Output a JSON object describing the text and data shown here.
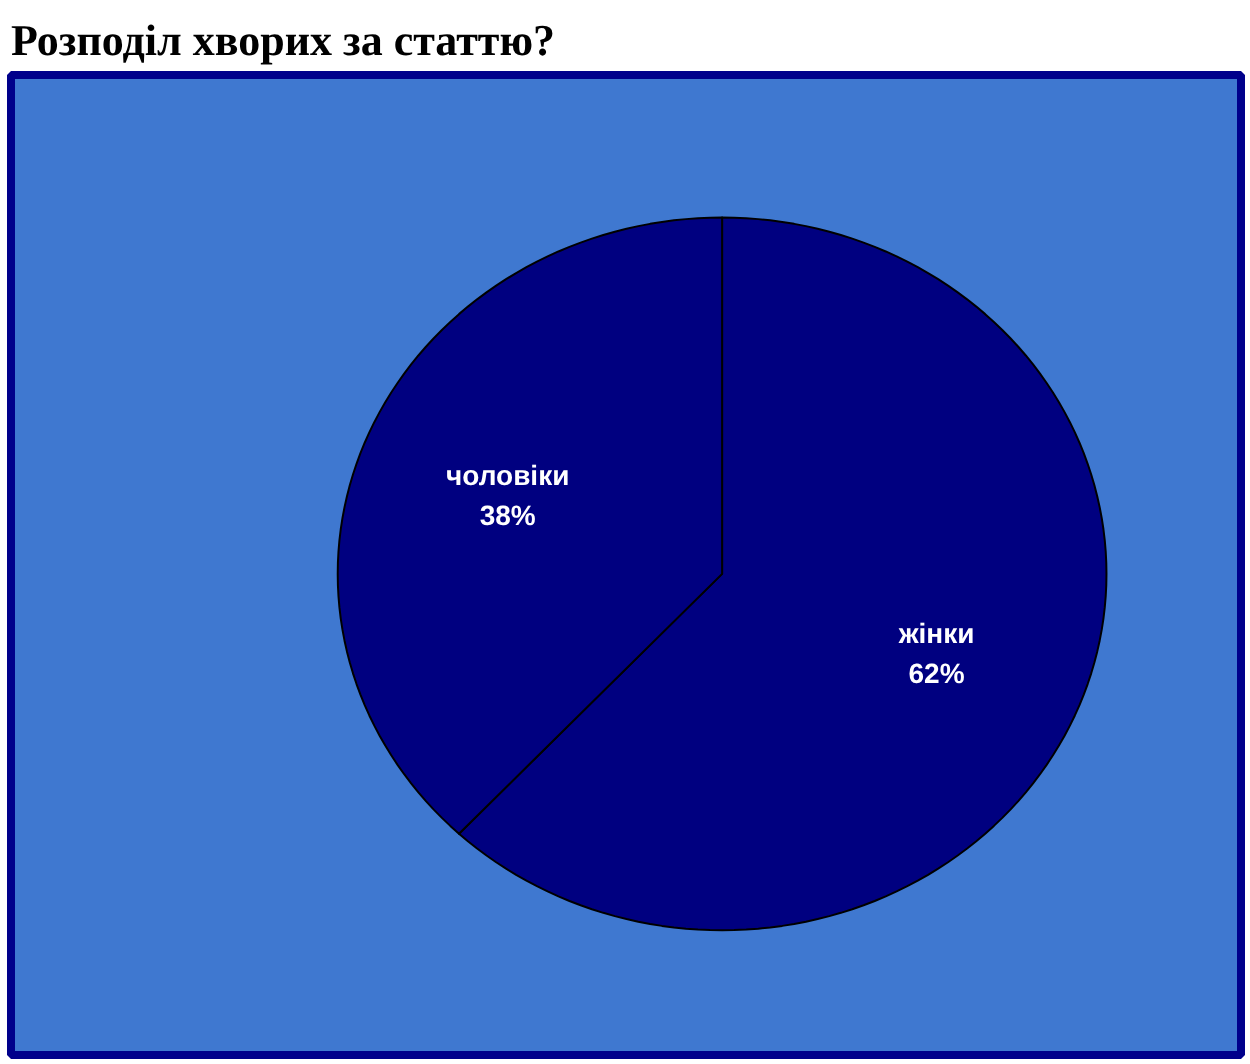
{
  "chart_data": {
    "type": "pie",
    "title": "Розподіл хворих за статтю?",
    "categories": [
      "жінки",
      "чоловіки"
    ],
    "values": [
      62,
      38
    ],
    "colors": [
      "#000080",
      "#000080"
    ],
    "value_labels": [
      "62%",
      "38%"
    ]
  }
}
